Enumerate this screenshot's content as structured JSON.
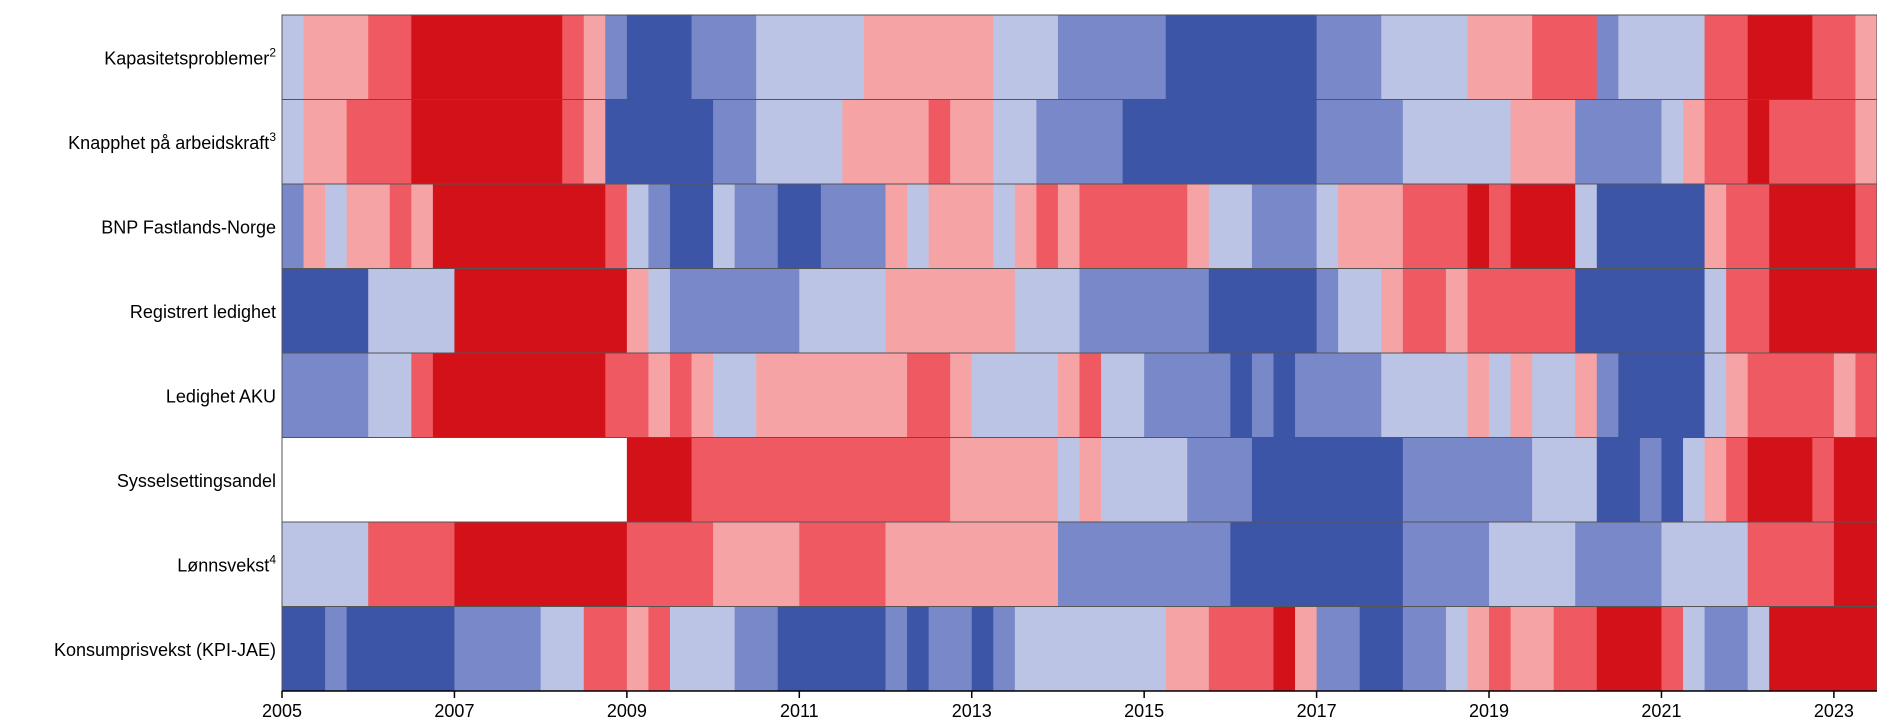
{
  "chart_data": {
    "type": "heatmap",
    "title": "",
    "xlabel": "",
    "ylabel": "",
    "xlim": [
      2005,
      2023.5
    ],
    "x_ticks": [
      "2005",
      "2007",
      "2009",
      "2011",
      "2013",
      "2015",
      "2017",
      "2019",
      "2021",
      "2023"
    ],
    "colors": {
      "-3": "#3d55a6",
      "-2": "#7888c9",
      "-1": "#bcc4e5",
      "1": "#f6a3a6",
      "2": "#ef5a62",
      "3": "#d21118",
      "null": "#ffffff"
    },
    "rows": [
      {
        "label": "Kapasitetsproblemer",
        "sup": "2",
        "segments": [
          [
            2005.0,
            -1
          ],
          [
            2005.25,
            1
          ],
          [
            2006.0,
            2
          ],
          [
            2006.5,
            3
          ],
          [
            2008.25,
            2
          ],
          [
            2008.5,
            1
          ],
          [
            2008.75,
            -2
          ],
          [
            2009.0,
            -3
          ],
          [
            2009.75,
            -2
          ],
          [
            2010.5,
            -1
          ],
          [
            2011.75,
            1
          ],
          [
            2013.25,
            -1
          ],
          [
            2014.0,
            -2
          ],
          [
            2015.25,
            -3
          ],
          [
            2017.0,
            -2
          ],
          [
            2017.75,
            -1
          ],
          [
            2018.75,
            1
          ],
          [
            2019.5,
            2
          ],
          [
            2020.25,
            -2
          ],
          [
            2020.5,
            -1
          ],
          [
            2021.5,
            2
          ],
          [
            2022.0,
            3
          ],
          [
            2022.75,
            2
          ],
          [
            2023.25,
            1
          ]
        ]
      },
      {
        "label": "Knapphet på arbeidskraft",
        "sup": "3",
        "segments": [
          [
            2005.0,
            -1
          ],
          [
            2005.25,
            1
          ],
          [
            2005.75,
            2
          ],
          [
            2006.5,
            3
          ],
          [
            2008.25,
            2
          ],
          [
            2008.5,
            1
          ],
          [
            2008.75,
            -3
          ],
          [
            2010.0,
            -2
          ],
          [
            2010.5,
            -1
          ],
          [
            2011.5,
            1
          ],
          [
            2012.5,
            2
          ],
          [
            2012.75,
            1
          ],
          [
            2013.25,
            -1
          ],
          [
            2013.75,
            -2
          ],
          [
            2014.75,
            -3
          ],
          [
            2017.0,
            -2
          ],
          [
            2018.0,
            -1
          ],
          [
            2019.25,
            1
          ],
          [
            2020.0,
            -2
          ],
          [
            2021.0,
            -1
          ],
          [
            2021.25,
            1
          ],
          [
            2021.5,
            2
          ],
          [
            2022.0,
            3
          ],
          [
            2022.25,
            2
          ],
          [
            2023.25,
            1
          ]
        ]
      },
      {
        "label": "BNP Fastlands-Norge",
        "sup": "",
        "segments": [
          [
            2005.0,
            -2
          ],
          [
            2005.25,
            1
          ],
          [
            2005.5,
            -1
          ],
          [
            2005.75,
            1
          ],
          [
            2006.25,
            2
          ],
          [
            2006.5,
            1
          ],
          [
            2006.75,
            3
          ],
          [
            2008.75,
            2
          ],
          [
            2009.0,
            -1
          ],
          [
            2009.25,
            -2
          ],
          [
            2009.5,
            -3
          ],
          [
            2010.0,
            -1
          ],
          [
            2010.25,
            -2
          ],
          [
            2010.75,
            -3
          ],
          [
            2011.25,
            -2
          ],
          [
            2012.0,
            1
          ],
          [
            2012.25,
            -1
          ],
          [
            2012.5,
            1
          ],
          [
            2013.25,
            -1
          ],
          [
            2013.5,
            1
          ],
          [
            2013.75,
            2
          ],
          [
            2014.0,
            1
          ],
          [
            2014.25,
            2
          ],
          [
            2015.5,
            1
          ],
          [
            2015.75,
            -1
          ],
          [
            2016.25,
            -2
          ],
          [
            2017.0,
            -1
          ],
          [
            2017.25,
            1
          ],
          [
            2018.0,
            2
          ],
          [
            2018.75,
            3
          ],
          [
            2019.0,
            2
          ],
          [
            2019.25,
            3
          ],
          [
            2020.0,
            -1
          ],
          [
            2020.25,
            -3
          ],
          [
            2021.5,
            1
          ],
          [
            2021.75,
            2
          ],
          [
            2022.25,
            3
          ],
          [
            2023.25,
            2
          ]
        ]
      },
      {
        "label": "Registrert ledighet",
        "sup": "",
        "segments": [
          [
            2005.0,
            -3
          ],
          [
            2006.0,
            -1
          ],
          [
            2007.0,
            3
          ],
          [
            2009.0,
            1
          ],
          [
            2009.25,
            -1
          ],
          [
            2009.5,
            -2
          ],
          [
            2011.0,
            -1
          ],
          [
            2012.0,
            1
          ],
          [
            2013.5,
            -1
          ],
          [
            2014.25,
            -2
          ],
          [
            2015.75,
            -3
          ],
          [
            2017.0,
            -2
          ],
          [
            2017.25,
            -1
          ],
          [
            2017.75,
            1
          ],
          [
            2018.0,
            2
          ],
          [
            2018.5,
            1
          ],
          [
            2018.75,
            2
          ],
          [
            2020.0,
            -3
          ],
          [
            2021.5,
            -1
          ],
          [
            2021.75,
            2
          ],
          [
            2022.25,
            3
          ]
        ]
      },
      {
        "label": "Ledighet AKU",
        "sup": "",
        "segments": [
          [
            2005.0,
            -2
          ],
          [
            2006.0,
            -1
          ],
          [
            2006.5,
            2
          ],
          [
            2006.75,
            3
          ],
          [
            2008.75,
            2
          ],
          [
            2009.25,
            1
          ],
          [
            2009.5,
            2
          ],
          [
            2009.75,
            1
          ],
          [
            2010.0,
            -1
          ],
          [
            2010.5,
            1
          ],
          [
            2012.25,
            2
          ],
          [
            2012.75,
            1
          ],
          [
            2013.0,
            -1
          ],
          [
            2014.0,
            1
          ],
          [
            2014.25,
            2
          ],
          [
            2014.5,
            -1
          ],
          [
            2015.0,
            -2
          ],
          [
            2016.0,
            -3
          ],
          [
            2016.25,
            -2
          ],
          [
            2016.5,
            -3
          ],
          [
            2016.75,
            -2
          ],
          [
            2017.75,
            -1
          ],
          [
            2018.75,
            1
          ],
          [
            2019.0,
            -1
          ],
          [
            2019.25,
            1
          ],
          [
            2019.5,
            -1
          ],
          [
            2020.0,
            1
          ],
          [
            2020.25,
            -2
          ],
          [
            2020.5,
            -3
          ],
          [
            2021.5,
            -1
          ],
          [
            2021.75,
            1
          ],
          [
            2022.0,
            2
          ],
          [
            2023.0,
            1
          ],
          [
            2023.25,
            2
          ]
        ]
      },
      {
        "label": "Sysselsettingsandel",
        "sup": "",
        "segments": [
          [
            2005.0,
            null
          ],
          [
            2009.0,
            3
          ],
          [
            2009.75,
            2
          ],
          [
            2012.75,
            1
          ],
          [
            2014.0,
            -1
          ],
          [
            2014.25,
            1
          ],
          [
            2014.5,
            -1
          ],
          [
            2015.5,
            -2
          ],
          [
            2016.25,
            -3
          ],
          [
            2018.0,
            -2
          ],
          [
            2019.5,
            -1
          ],
          [
            2020.25,
            -3
          ],
          [
            2020.75,
            -2
          ],
          [
            2021.0,
            -3
          ],
          [
            2021.25,
            -1
          ],
          [
            2021.5,
            1
          ],
          [
            2021.75,
            2
          ],
          [
            2022.0,
            3
          ],
          [
            2022.75,
            2
          ],
          [
            2023.0,
            3
          ]
        ]
      },
      {
        "label": "Lønnsvekst",
        "sup": "4",
        "segments": [
          [
            2005.0,
            -1
          ],
          [
            2006.0,
            2
          ],
          [
            2007.0,
            3
          ],
          [
            2009.0,
            2
          ],
          [
            2010.0,
            1
          ],
          [
            2011.0,
            2
          ],
          [
            2012.0,
            1
          ],
          [
            2014.0,
            -2
          ],
          [
            2016.0,
            -3
          ],
          [
            2018.0,
            -2
          ],
          [
            2019.0,
            -1
          ],
          [
            2020.0,
            -2
          ],
          [
            2021.0,
            -1
          ],
          [
            2022.0,
            2
          ],
          [
            2023.0,
            3
          ]
        ]
      },
      {
        "label": "Konsumprisvekst (KPI-JAE)",
        "sup": "",
        "segments": [
          [
            2005.0,
            -3
          ],
          [
            2005.5,
            -2
          ],
          [
            2005.75,
            -3
          ],
          [
            2007.0,
            -2
          ],
          [
            2008.0,
            -1
          ],
          [
            2008.5,
            2
          ],
          [
            2009.0,
            1
          ],
          [
            2009.25,
            2
          ],
          [
            2009.5,
            -1
          ],
          [
            2010.25,
            -2
          ],
          [
            2010.75,
            -3
          ],
          [
            2012.0,
            -2
          ],
          [
            2012.25,
            -3
          ],
          [
            2012.5,
            -2
          ],
          [
            2013.0,
            -3
          ],
          [
            2013.25,
            -2
          ],
          [
            2013.5,
            -1
          ],
          [
            2015.25,
            1
          ],
          [
            2015.75,
            2
          ],
          [
            2016.5,
            3
          ],
          [
            2016.75,
            1
          ],
          [
            2017.0,
            -2
          ],
          [
            2017.5,
            -3
          ],
          [
            2018.0,
            -2
          ],
          [
            2018.5,
            -1
          ],
          [
            2018.75,
            1
          ],
          [
            2019.0,
            2
          ],
          [
            2019.25,
            1
          ],
          [
            2019.75,
            2
          ],
          [
            2020.25,
            3
          ],
          [
            2021.0,
            2
          ],
          [
            2021.25,
            -1
          ],
          [
            2021.5,
            -2
          ],
          [
            2022.0,
            -1
          ],
          [
            2022.25,
            3
          ]
        ]
      }
    ]
  }
}
